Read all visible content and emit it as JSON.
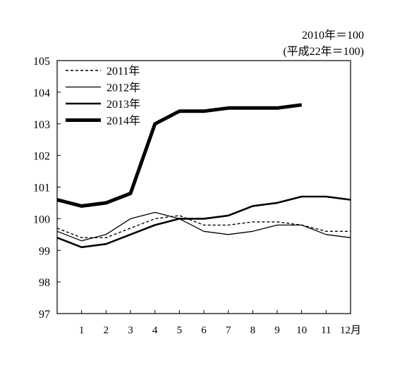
{
  "chart_data": {
    "type": "line",
    "note": [
      "2010年＝100",
      "(平成22年＝100)"
    ],
    "x": [
      0,
      1,
      2,
      3,
      4,
      5,
      6,
      7,
      8,
      9,
      10,
      11,
      12
    ],
    "xtick_labels": [
      "1",
      "2",
      "3",
      "4",
      "5",
      "6",
      "7",
      "8",
      "9",
      "10",
      "11",
      "12月"
    ],
    "ylim": [
      97,
      105
    ],
    "yticks": [
      97,
      98,
      99,
      100,
      101,
      102,
      103,
      104,
      105
    ],
    "series": [
      {
        "name": "2011年",
        "style": "dashed",
        "values": [
          99.7,
          99.4,
          99.4,
          99.7,
          100.0,
          100.1,
          99.8,
          99.8,
          99.9,
          99.9,
          99.8,
          99.6,
          99.6
        ]
      },
      {
        "name": "2012年",
        "style": "thin",
        "values": [
          99.6,
          99.3,
          99.5,
          100.0,
          100.2,
          100.0,
          99.6,
          99.5,
          99.6,
          99.8,
          99.8,
          99.5,
          99.4
        ]
      },
      {
        "name": "2013年",
        "style": "medium",
        "values": [
          99.4,
          99.1,
          99.2,
          99.5,
          99.8,
          100.0,
          100.0,
          100.1,
          100.4,
          100.5,
          100.7,
          100.7,
          100.6
        ]
      },
      {
        "name": "2014年",
        "style": "thick",
        "values": [
          100.6,
          100.4,
          100.5,
          100.8,
          103.0,
          103.4,
          103.4,
          103.5,
          103.5,
          103.5,
          103.6,
          null,
          null
        ]
      }
    ],
    "legend_position": "top-left",
    "grid": false
  }
}
